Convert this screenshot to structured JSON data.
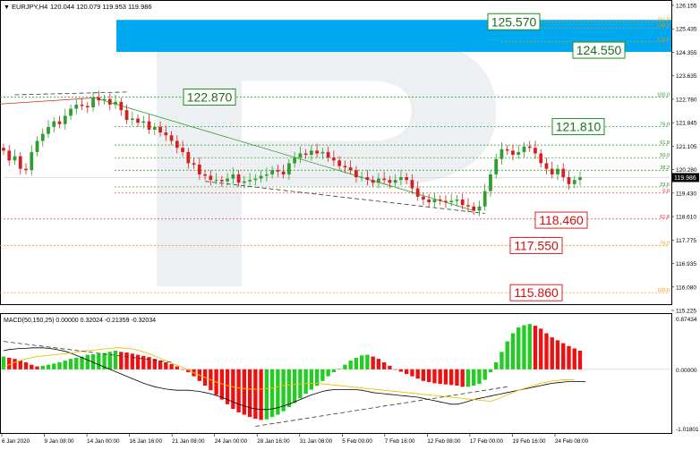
{
  "header": {
    "menu_glyph": "▼",
    "symbol": "EURJPY,H4",
    "ohlc": "120.044 120.079 119.953 119.986"
  },
  "watermark": "R",
  "macd_header": "MACD(50,150,25) 0.00000 0.32024 -0.21359 -0.32034",
  "colors": {
    "bull_candle": "#2e9e2e",
    "bear_candle": "#d62020",
    "hist_up": "#22cc22",
    "hist_down": "#ee1111",
    "blue_zone": "#00a8f0",
    "signal_line": "#f2c000",
    "green_label_border": "#1e8f1e",
    "red_label_border": "#e02020"
  },
  "chart_data": [
    {
      "type": "candlestick",
      "title": "EURJPY,H4",
      "x_tick_labels": [
        "6 Jan 2020",
        "9 Jan 08:00",
        "14 Jan 00:00",
        "16 Jan 16:00",
        "21 Jan 08:00",
        "24 Jan 00:00",
        "28 Jan 16:00",
        "31 Jan 08:00",
        "5 Feb 00:00",
        "7 Feb 16:00",
        "12 Feb 08:00",
        "17 Feb 00:00",
        "19 Feb 16:00",
        "24 Feb 08:00"
      ],
      "y_tick_labels": [
        "126.155",
        "125.435",
        "124.355",
        "123.635",
        "122.780",
        "121.845",
        "121.105",
        "120.280",
        "119.430",
        "118.610",
        "117.775",
        "116.935",
        "116.080",
        "115.225"
      ],
      "ylim": [
        115.225,
        126.155
      ],
      "current_price": "119.986",
      "approx_closes": [
        120.95,
        120.6,
        120.75,
        120.3,
        120.25,
        120.9,
        121.3,
        121.55,
        121.8,
        122.0,
        121.9,
        122.2,
        122.45,
        122.6,
        122.55,
        122.5,
        122.85,
        122.75,
        122.8,
        122.6,
        122.7,
        122.4,
        122.05,
        122.1,
        121.95,
        122.0,
        121.7,
        121.8,
        121.6,
        121.5,
        121.3,
        121.05,
        120.9,
        120.5,
        120.45,
        120.1,
        120.05,
        119.9,
        119.9,
        119.85,
        119.95,
        120.1,
        119.8,
        119.85,
        119.9,
        119.95,
        120.05,
        120.1,
        120.25,
        120.2,
        120.1,
        120.5,
        120.7,
        120.85,
        120.8,
        120.95,
        120.85,
        120.9,
        120.7,
        120.6,
        120.4,
        120.35,
        120.25,
        120.0,
        120.0,
        119.9,
        119.8,
        119.95,
        119.9,
        119.8,
        119.9,
        120.0,
        119.9,
        119.6,
        119.3,
        119.2,
        119.1,
        119.2,
        119.15,
        119.1,
        119.15,
        119.2,
        119.0,
        118.95,
        118.8,
        118.95,
        119.5,
        120.1,
        120.65,
        121.0,
        120.95,
        120.8,
        120.9,
        121.1,
        121.05,
        120.85,
        120.5,
        120.3,
        120.1,
        120.3,
        120.0,
        119.75,
        119.9,
        120.0
      ],
      "fibonacci_levels": [
        {
          "label": "161.8",
          "price": 125.57,
          "color": "#d4a017"
        },
        {
          "label": "138.2",
          "price": 125.35,
          "color": "#d4a017"
        },
        {
          "label": "123.6",
          "price": 124.85,
          "color": "#d4a017"
        },
        {
          "label": "100.0",
          "price": 122.87,
          "color": "#1e8f1e"
        },
        {
          "label": "76.0",
          "price": 121.81,
          "color": "#1e8f1e"
        },
        {
          "label": "61.8",
          "price": 121.15,
          "color": "#1e8f1e"
        },
        {
          "label": "50.0",
          "price": 120.7,
          "color": "#1e8f1e"
        },
        {
          "label": "38.2",
          "price": 120.25,
          "color": "#1e8f1e"
        },
        {
          "label": "23.6",
          "price": 119.65,
          "color": "#1e8f1e"
        },
        {
          "label": "0.0",
          "price": 119.43,
          "color": "#e02020"
        },
        {
          "label": "61.8",
          "price": 118.5,
          "color": "#e02020"
        },
        {
          "label": "76.0",
          "price": 117.55,
          "color": "#ff8c00"
        },
        {
          "label": "100.0",
          "price": 115.86,
          "color": "#ff8c00"
        }
      ],
      "price_labels": [
        {
          "text": "125.570",
          "price": 125.57,
          "style": "green"
        },
        {
          "text": "124.550",
          "price": 124.55,
          "style": "green"
        },
        {
          "text": "122.870",
          "price": 122.87,
          "style": "green"
        },
        {
          "text": "121.810",
          "price": 121.81,
          "style": "green"
        },
        {
          "text": "118.460",
          "price": 118.46,
          "style": "red"
        },
        {
          "text": "117.550",
          "price": 117.55,
          "style": "red"
        },
        {
          "text": "115.860",
          "price": 115.86,
          "style": "red"
        }
      ],
      "target_zone": {
        "from": 124.55,
        "to": 125.57
      }
    },
    {
      "type": "histogram",
      "title": "MACD(50,150,25)",
      "y_tick_labels": [
        "0.87434",
        "0.00000",
        "-1.01801"
      ],
      "ylim": [
        -1.01801,
        0.87434
      ],
      "histogram": [
        0.22,
        0.2,
        0.18,
        0.15,
        0.12,
        0.08,
        0.05,
        0.06,
        0.08,
        0.1,
        0.12,
        0.15,
        0.18,
        0.2,
        0.22,
        0.25,
        0.26,
        0.27,
        0.28,
        0.3,
        0.32,
        0.3,
        0.29,
        0.27,
        0.25,
        0.23,
        0.21,
        0.18,
        0.15,
        0.12,
        0.09,
        0.05,
        0.0,
        -0.05,
        -0.12,
        -0.2,
        -0.28,
        -0.36,
        -0.44,
        -0.52,
        -0.6,
        -0.68,
        -0.74,
        -0.78,
        -0.82,
        -0.85,
        -0.87,
        -0.86,
        -0.82,
        -0.78,
        -0.72,
        -0.65,
        -0.58,
        -0.5,
        -0.42,
        -0.35,
        -0.28,
        -0.2,
        -0.12,
        -0.05,
        0.01,
        0.08,
        0.15,
        0.2,
        0.24,
        0.25,
        0.22,
        0.18,
        0.12,
        0.06,
        0.0,
        -0.04,
        -0.08,
        -0.12,
        -0.16,
        -0.2,
        -0.22,
        -0.24,
        -0.25,
        -0.26,
        -0.27,
        -0.28,
        -0.3,
        -0.3,
        -0.28,
        -0.25,
        -0.18,
        -0.05,
        0.12,
        0.3,
        0.48,
        0.62,
        0.72,
        0.76,
        0.78,
        0.75,
        0.7,
        0.62,
        0.55,
        0.5,
        0.45,
        0.4,
        0.36,
        0.32
      ],
      "macd_line": [
        0.32,
        0.34,
        0.35,
        0.36,
        0.36,
        0.37,
        0.37,
        0.37,
        0.36,
        0.35,
        0.33,
        0.31,
        0.28,
        0.24,
        0.2,
        0.16,
        0.12,
        0.08,
        0.04,
        0.0,
        -0.04,
        -0.08,
        -0.12,
        -0.16,
        -0.2,
        -0.24,
        -0.27,
        -0.3,
        -0.32,
        -0.34,
        -0.35,
        -0.36,
        -0.36,
        -0.36,
        -0.37,
        -0.38,
        -0.4,
        -0.42,
        -0.45,
        -0.48,
        -0.52,
        -0.56,
        -0.6,
        -0.63,
        -0.66,
        -0.68,
        -0.69,
        -0.69,
        -0.68,
        -0.66,
        -0.63,
        -0.6,
        -0.56,
        -0.52,
        -0.48,
        -0.44,
        -0.41,
        -0.38,
        -0.36,
        -0.35,
        -0.35,
        -0.35,
        -0.35,
        -0.35,
        -0.36,
        -0.38,
        -0.4,
        -0.41,
        -0.42,
        -0.43,
        -0.44,
        -0.45,
        -0.46,
        -0.47,
        -0.48,
        -0.5,
        -0.52,
        -0.54,
        -0.56,
        -0.58,
        -0.6,
        -0.6,
        -0.58,
        -0.55,
        -0.52,
        -0.5,
        -0.48,
        -0.46,
        -0.44,
        -0.42,
        -0.4,
        -0.38,
        -0.36,
        -0.34,
        -0.32,
        -0.3,
        -0.28,
        -0.26,
        -0.24,
        -0.23,
        -0.22,
        -0.21,
        -0.21,
        -0.21,
        -0.21
      ],
      "signal_line": [
        0.03,
        0.08,
        0.12,
        0.15,
        0.18,
        0.2,
        0.22,
        0.23,
        0.24,
        0.25,
        0.26,
        0.27,
        0.28,
        0.3,
        0.31,
        0.32,
        0.33,
        0.34,
        0.35,
        0.36,
        0.37,
        0.37,
        0.36,
        0.35,
        0.33,
        0.3,
        0.27,
        0.23,
        0.19,
        0.15,
        0.11,
        0.07,
        0.03,
        -0.01,
        -0.06,
        -0.1,
        -0.14,
        -0.18,
        -0.22,
        -0.25,
        -0.28,
        -0.3,
        -0.32,
        -0.33,
        -0.34,
        -0.34,
        -0.34,
        -0.33,
        -0.32,
        -0.3,
        -0.28,
        -0.27,
        -0.26,
        -0.25,
        -0.24,
        -0.24,
        -0.24,
        -0.25,
        -0.26,
        -0.27,
        -0.28,
        -0.29,
        -0.3,
        -0.31,
        -0.32,
        -0.33,
        -0.34,
        -0.35,
        -0.36,
        -0.37,
        -0.38,
        -0.39,
        -0.4,
        -0.41,
        -0.42,
        -0.43,
        -0.44,
        -0.45,
        -0.46,
        -0.47,
        -0.48,
        -0.49,
        -0.5,
        -0.51,
        -0.52,
        -0.53,
        -0.54,
        -0.55,
        -0.52,
        -0.48,
        -0.44,
        -0.4,
        -0.36,
        -0.33,
        -0.3,
        -0.27,
        -0.24,
        -0.22,
        -0.2,
        -0.19,
        -0.18,
        -0.18,
        -0.18
      ]
    }
  ]
}
